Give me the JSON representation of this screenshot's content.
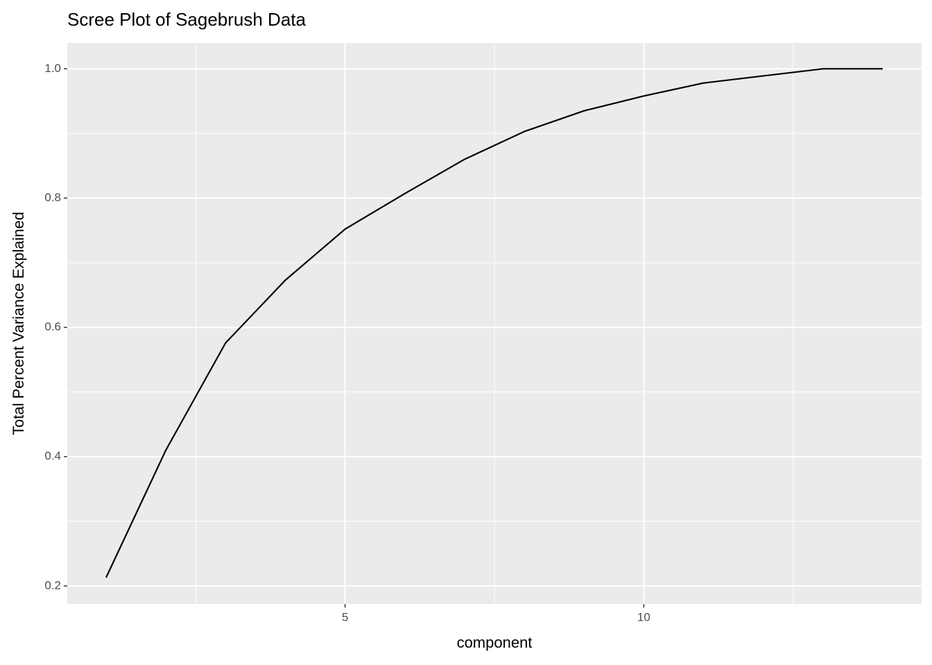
{
  "chart_data": {
    "type": "line",
    "title": "Scree Plot of Sagebrush Data",
    "x_label": "component",
    "y_label": "Total Percent Variance Explained",
    "x": [
      1,
      2,
      3,
      4,
      5,
      6,
      7,
      8,
      9,
      10,
      11,
      12,
      13,
      14
    ],
    "values": [
      0.213,
      0.41,
      0.576,
      0.673,
      0.752,
      0.807,
      0.86,
      0.903,
      0.935,
      0.958,
      0.978,
      0.989,
      1.0,
      1.0
    ],
    "color": "#000000",
    "xlim": [
      0.35,
      14.65
    ],
    "xticks": [
      5,
      10
    ],
    "ylim": [
      0.172,
      1.04
    ],
    "yticks": [
      {
        "value": 0.2,
        "label": "0.2"
      },
      {
        "value": 0.4,
        "label": "0.4"
      },
      {
        "value": 0.6,
        "label": "0.6"
      },
      {
        "value": 0.8,
        "label": "0.8"
      },
      {
        "value": 1.0,
        "label": "1.0"
      }
    ],
    "grid": true
  }
}
